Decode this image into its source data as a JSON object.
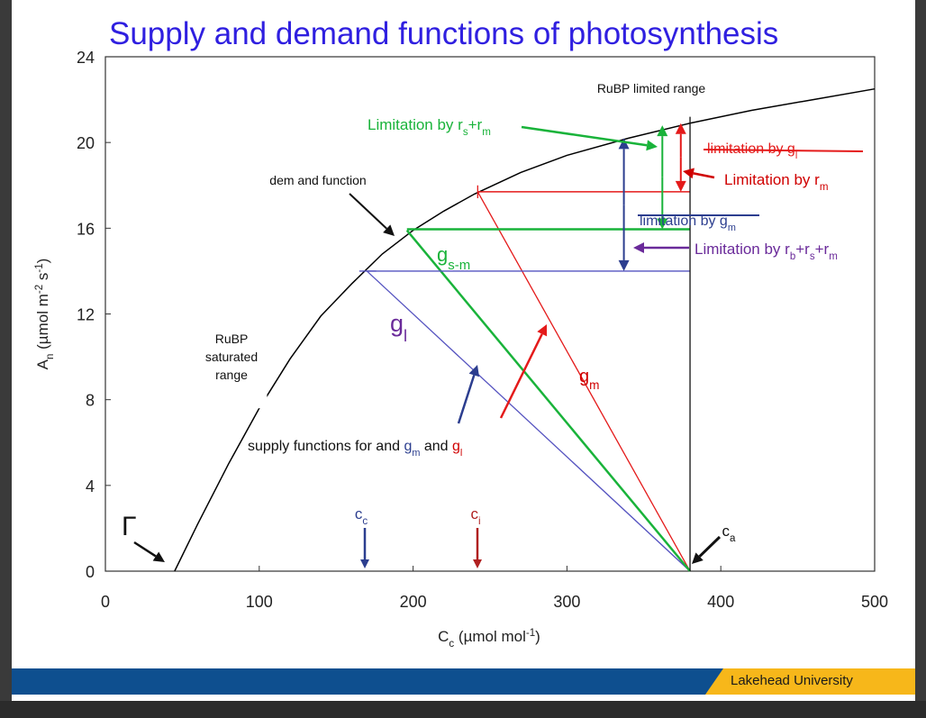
{
  "slide": {
    "title": "Supply and demand functions of photosynthesis",
    "footer": "Lakehead University"
  },
  "colors": {
    "title": "#2f1fe0",
    "demand": "#000000",
    "g_l": "#5553c0",
    "g_m": "#e41a1a",
    "g_sm": "#19b33a",
    "purple": "#6a2a9a",
    "navy": "#2c3e8f",
    "footer_blue": "#0e4f8f",
    "footer_gold": "#f7b71a"
  },
  "chart_data": {
    "type": "line",
    "title": "Supply and demand functions of photosynthesis",
    "xlabel": "Cc (µmol mol-1)",
    "ylabel": "An (µmol m-2 s-1)",
    "xlim": [
      0,
      500
    ],
    "ylim": [
      0,
      24
    ],
    "xticks": [
      0,
      100,
      200,
      300,
      400,
      500
    ],
    "yticks": [
      0,
      4,
      8,
      12,
      16,
      20,
      24
    ],
    "grid": false,
    "series": [
      {
        "name": "demand function",
        "color": "#000000",
        "x": [
          45,
          60,
          80,
          100,
          120,
          140,
          160,
          180,
          200,
          220,
          240,
          270,
          300,
          340,
          380,
          420,
          460,
          500
        ],
        "y": [
          0,
          2.2,
          5.0,
          7.6,
          9.9,
          11.9,
          13.4,
          14.8,
          15.9,
          16.8,
          17.6,
          18.6,
          19.4,
          20.2,
          20.9,
          21.5,
          22.0,
          22.5
        ]
      },
      {
        "name": "g_l supply",
        "color": "#5553c0",
        "x": [
          170,
          380
        ],
        "y": [
          14,
          0
        ]
      },
      {
        "name": "g_m supply",
        "color": "#e41a1a",
        "x": [
          242,
          380
        ],
        "y": [
          17.7,
          0
        ]
      },
      {
        "name": "g_s-m supply",
        "color": "#19b33a",
        "x": [
          196,
          380
        ],
        "y": [
          15.9,
          0
        ]
      }
    ],
    "annotations": {
      "rubp_limited": "RuBP limited range",
      "rubp_saturated": [
        "RuBP",
        "saturated",
        "range"
      ],
      "demand_function": "dem and function",
      "gamma": "Γ",
      "g_sm_label": [
        "g",
        "s-m"
      ],
      "g_l_label": [
        "g",
        "l"
      ],
      "g_m_label": [
        "g",
        "m"
      ],
      "cc_label": "c",
      "cc_sub": "c",
      "ci_label": "c",
      "ci_sub": "i",
      "ca_label": "c",
      "ca_sub": "a",
      "lim_rs_rm": [
        "Limitation by r",
        "s",
        "+r",
        "m"
      ],
      "lim_gl": [
        "limitation by g",
        "l"
      ],
      "lim_rm": [
        "Limitation by r",
        "m"
      ],
      "lim_gm": [
        "limitation by g",
        "m"
      ],
      "lim_rb": [
        "Limitation by r",
        "b",
        "+r",
        "s",
        "+r",
        "m"
      ],
      "supply_functions": [
        "supply functions for and ",
        "g",
        "m",
        " and ",
        "g",
        "l"
      ]
    }
  }
}
